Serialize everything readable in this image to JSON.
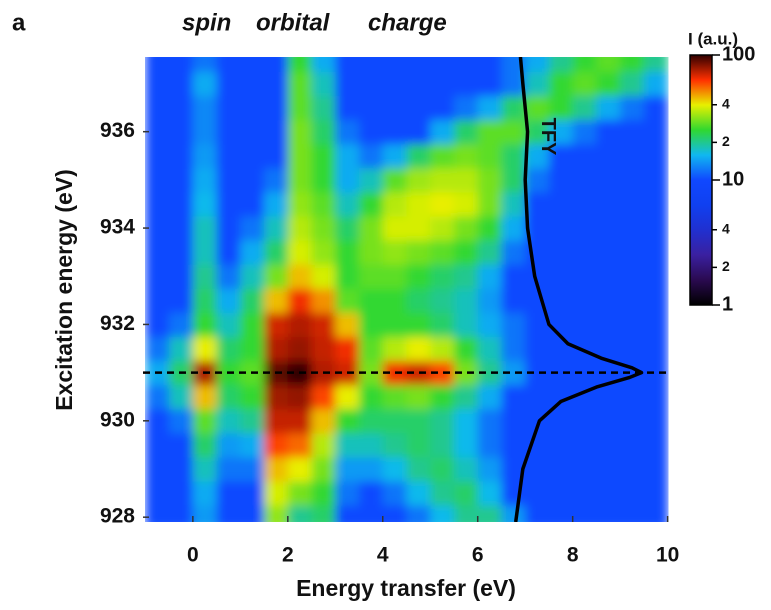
{
  "chart_data": {
    "type": "heatmap",
    "panel_label": "a",
    "header": [
      {
        "text": "spin",
        "color": "#e8300c"
      },
      {
        "text": "orbital",
        "color": "#7a0a0a"
      },
      {
        "text": "charge",
        "color": "#2a9a1a"
      }
    ],
    "xlabel": "Energy transfer (eV)",
    "ylabel": "Excitation energy (eV)",
    "xlim": [
      -1.05,
      10.05
    ],
    "ylim": [
      927.9,
      937.55
    ],
    "xticks": [
      0,
      2,
      4,
      6,
      8,
      10
    ],
    "yticks": [
      928,
      930,
      932,
      934,
      936
    ],
    "x": [
      -0.75,
      -0.25,
      0.25,
      0.75,
      1.25,
      1.75,
      2.25,
      2.75,
      3.25,
      3.75,
      4.25,
      4.75,
      5.25,
      5.75,
      6.25,
      6.75,
      7.25,
      7.75,
      8.25,
      8.75,
      9.25,
      9.75
    ],
    "y": [
      928,
      928.5,
      929,
      929.5,
      930,
      930.5,
      931,
      931.5,
      932,
      932.5,
      933,
      933.5,
      934,
      934.5,
      935,
      935.5,
      936,
      936.5,
      937,
      937.5
    ],
    "z": [
      [
        10,
        10,
        14,
        10,
        10,
        32,
        20,
        22,
        10,
        10,
        10,
        12,
        16,
        20,
        20,
        14,
        10,
        10,
        10,
        10,
        10,
        10
      ],
      [
        10,
        10,
        15,
        10,
        10,
        38,
        30,
        25,
        12,
        10,
        12,
        16,
        20,
        22,
        16,
        10,
        10,
        10,
        10,
        10,
        10,
        10
      ],
      [
        10,
        10,
        18,
        12,
        12,
        45,
        40,
        30,
        14,
        14,
        16,
        20,
        22,
        18,
        14,
        10,
        10,
        10,
        10,
        10,
        10,
        10
      ],
      [
        10,
        10,
        22,
        14,
        15,
        60,
        55,
        35,
        18,
        18,
        20,
        22,
        20,
        16,
        12,
        10,
        10,
        10,
        10,
        10,
        10,
        10
      ],
      [
        10,
        12,
        28,
        18,
        20,
        72,
        72,
        45,
        25,
        22,
        22,
        22,
        20,
        16,
        12,
        10,
        10,
        10,
        10,
        10,
        10,
        10
      ],
      [
        12,
        18,
        45,
        22,
        25,
        78,
        80,
        60,
        40,
        25,
        28,
        30,
        25,
        20,
        15,
        10,
        10,
        10,
        10,
        10,
        10,
        10
      ],
      [
        15,
        22,
        75,
        25,
        28,
        90,
        100,
        75,
        70,
        30,
        65,
        70,
        60,
        30,
        20,
        14,
        10,
        10,
        10,
        10,
        10,
        10
      ],
      [
        12,
        18,
        40,
        22,
        25,
        75,
        80,
        72,
        65,
        28,
        35,
        40,
        35,
        25,
        18,
        12,
        10,
        10,
        10,
        10,
        10,
        10
      ],
      [
        10,
        12,
        25,
        18,
        25,
        70,
        75,
        70,
        45,
        25,
        25,
        25,
        22,
        18,
        15,
        12,
        10,
        10,
        10,
        10,
        10,
        10
      ],
      [
        10,
        10,
        22,
        15,
        22,
        45,
        65,
        50,
        28,
        25,
        25,
        22,
        20,
        18,
        14,
        10,
        10,
        10,
        10,
        10,
        10,
        10
      ],
      [
        10,
        10,
        20,
        12,
        18,
        30,
        45,
        38,
        25,
        28,
        28,
        25,
        22,
        20,
        15,
        10,
        10,
        10,
        10,
        10,
        10,
        10
      ],
      [
        10,
        10,
        18,
        10,
        15,
        22,
        38,
        32,
        25,
        30,
        32,
        30,
        28,
        25,
        20,
        12,
        10,
        10,
        10,
        10,
        10,
        10
      ],
      [
        10,
        10,
        18,
        10,
        12,
        18,
        35,
        30,
        22,
        30,
        38,
        38,
        35,
        30,
        25,
        15,
        10,
        10,
        10,
        10,
        10,
        10
      ],
      [
        10,
        10,
        16,
        10,
        10,
        15,
        32,
        28,
        18,
        25,
        35,
        38,
        40,
        38,
        30,
        18,
        10,
        10,
        10,
        10,
        10,
        10
      ],
      [
        10,
        10,
        15,
        10,
        10,
        12,
        30,
        25,
        15,
        18,
        28,
        33,
        35,
        35,
        30,
        22,
        12,
        10,
        10,
        10,
        10,
        10
      ],
      [
        10,
        10,
        14,
        10,
        10,
        10,
        30,
        25,
        15,
        12,
        15,
        22,
        28,
        30,
        28,
        22,
        15,
        10,
        10,
        10,
        10,
        10
      ],
      [
        10,
        10,
        13,
        10,
        10,
        10,
        30,
        22,
        12,
        10,
        10,
        10,
        15,
        22,
        28,
        28,
        22,
        15,
        12,
        10,
        10,
        10
      ],
      [
        10,
        10,
        13,
        10,
        10,
        10,
        28,
        20,
        10,
        10,
        10,
        10,
        10,
        12,
        15,
        22,
        28,
        25,
        20,
        15,
        12,
        10
      ],
      [
        10,
        10,
        15,
        10,
        10,
        10,
        28,
        18,
        10,
        10,
        10,
        10,
        10,
        10,
        10,
        12,
        18,
        25,
        28,
        25,
        20,
        15
      ],
      [
        10,
        10,
        12,
        10,
        10,
        10,
        25,
        15,
        10,
        10,
        10,
        10,
        10,
        10,
        10,
        12,
        15,
        20,
        25,
        28,
        25,
        20
      ]
    ],
    "log_color": true,
    "clim": [
      1,
      100
    ],
    "colormap": [
      "#000000",
      "#2a0a50",
      "#3a20a0",
      "#2030d0",
      "#1040f0",
      "#1048ff",
      "#10b8f0",
      "#30d830",
      "#e8f000",
      "#ff3000",
      "#300000"
    ],
    "colorbar_title": "I (a.u.)",
    "cticks": [
      100,
      {
        "value": 40,
        "label": "4"
      },
      {
        "value": 20,
        "label": "2"
      },
      10,
      {
        "value": 4,
        "label": "4"
      },
      {
        "value": 2,
        "label": "2"
      },
      1
    ],
    "reference_line": {
      "value": 931,
      "color": "#000000",
      "dashed": true
    },
    "tfy": {
      "name": "TFY",
      "color": "#000000",
      "y": [
        927.9,
        929,
        930,
        930.4,
        930.7,
        930.9,
        931,
        931.1,
        931.3,
        931.6,
        932,
        933,
        934,
        935,
        936,
        937,
        937.55
      ],
      "x": [
        6.8,
        6.95,
        7.3,
        7.75,
        8.5,
        9.2,
        9.45,
        9.25,
        8.6,
        7.9,
        7.5,
        7.2,
        7.05,
        7.0,
        7.05,
        6.95,
        6.9
      ]
    }
  }
}
